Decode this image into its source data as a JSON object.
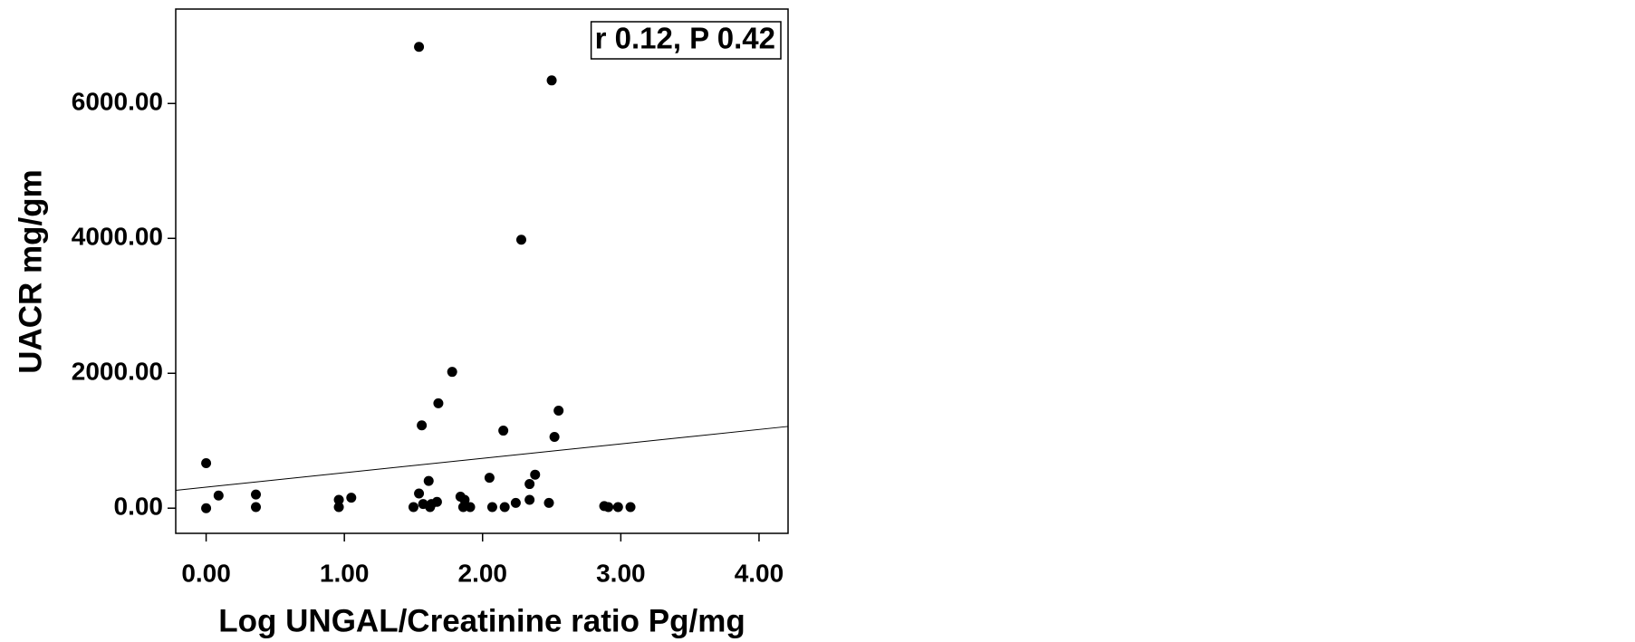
{
  "chart_data": {
    "type": "scatter",
    "xlabel": "Log UNGAL/Creatinine ratio Pg/mg",
    "ylabel": "UACR mg/gm",
    "annotation": "r 0.12, P 0.42",
    "color": "#000000",
    "xlim": [
      -0.22,
      4.21
    ],
    "ylim": [
      -373,
      7400
    ],
    "xticks": [
      {
        "value": 0,
        "label": "0.00"
      },
      {
        "value": 1,
        "label": "1.00"
      },
      {
        "value": 2,
        "label": "2.00"
      },
      {
        "value": 3,
        "label": "3.00"
      },
      {
        "value": 4,
        "label": "4.00"
      }
    ],
    "yticks": [
      {
        "value": 0,
        "label": "0.00"
      },
      {
        "value": 2000,
        "label": "2000.00"
      },
      {
        "value": 4000,
        "label": "4000.00"
      },
      {
        "value": 6000,
        "label": "6000.00"
      }
    ],
    "x": [
      0,
      0,
      0.09,
      0.36,
      0.36,
      0.96,
      0.96,
      1.05,
      1.54,
      1.56,
      1.54,
      1.5,
      1.57,
      1.61,
      1.62,
      1.63,
      1.68,
      1.67,
      1.78,
      1.84,
      1.86,
      1.87,
      1.91,
      2.05,
      2.07,
      2.15,
      2.16,
      2.24,
      2.28,
      2.34,
      2.34,
      2.38,
      2.5,
      2.48,
      2.52,
      2.55,
      2.88,
      2.91,
      2.98,
      3.07
    ],
    "values": [
      668,
      0,
      187,
      202,
      16,
      124,
      16,
      155,
      6840,
      1228,
      218,
      16,
      62,
      404,
      16,
      62,
      1555,
      93,
      2021,
      171,
      16,
      124,
      16,
      451,
      16,
      1150,
      16,
      78,
      3980,
      124,
      358,
      497,
      6342,
      78,
      1057,
      1446,
      31,
      16,
      16,
      16
    ],
    "fit_line": {
      "x": [
        -0.22,
        4.21
      ],
      "y": [
        264,
        1212
      ]
    }
  }
}
